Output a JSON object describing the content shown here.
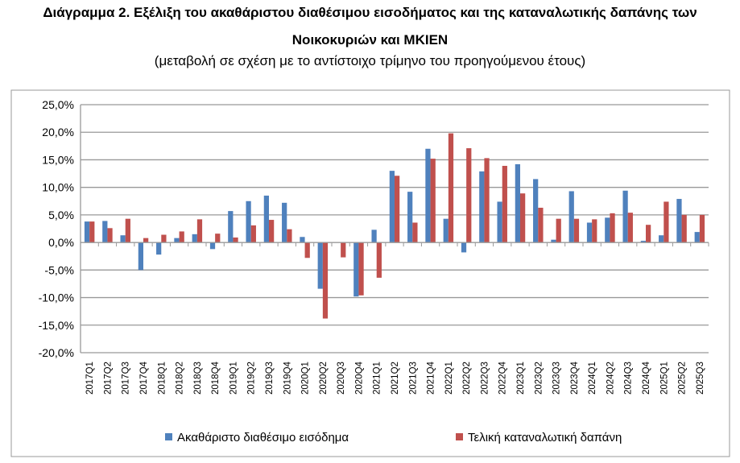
{
  "title_line1": "Διάγραμμα 2. Εξέλιξη του ακαθάριστου διαθέσιμου εισοδήματος και της καταναλωτικής δαπάνης των",
  "title_line2": "Νοικοκυριών και ΜΚΙΕΝ",
  "subtitle": "(μεταβολή σε σχέση με το αντίστοιχο τρίμηνο του προηγούμενου έτους)",
  "chart_data": {
    "type": "bar",
    "ylim": [
      -20,
      25
    ],
    "yticks": [
      -20,
      -15,
      -10,
      -5,
      0,
      5,
      10,
      15,
      20,
      25
    ],
    "ytick_labels": [
      "-20,0%",
      "-15,0%",
      "-10,0%",
      "-5,0%",
      "0,0%",
      "5,0%",
      "10,0%",
      "15,0%",
      "20,0%",
      "25,0%"
    ],
    "grid": true,
    "legend_position": "bottom",
    "categories": [
      "2017Q1",
      "2017Q2",
      "2017Q3",
      "2017Q4",
      "2018Q1",
      "2018Q2",
      "2018Q3",
      "2018Q4",
      "2019Q1",
      "2019Q2",
      "2019Q3",
      "2019Q4",
      "2020Q1",
      "2020Q2",
      "2020Q3",
      "2020Q4",
      "2021Q1",
      "2021Q2",
      "2021Q3",
      "2021Q4",
      "2022Q1",
      "2022Q2",
      "2022Q3",
      "2022Q4",
      "2023Q1",
      "2023Q2",
      "2023Q3",
      "2023Q4",
      "2024Q1",
      "2024Q2",
      "2024Q3",
      "2024Q4",
      "2025Q1",
      "2025Q2",
      "2025Q3"
    ],
    "series": [
      {
        "name": "Ακαθάριστο διαθέσιμο εισόδημα",
        "color": "#4F81BD",
        "values": [
          3.8,
          3.9,
          1.3,
          -5.0,
          -2.2,
          0.8,
          1.5,
          -1.2,
          5.7,
          7.5,
          8.5,
          7.2,
          1.0,
          -8.4,
          0.0,
          -9.8,
          2.3,
          13.0,
          9.2,
          17.0,
          4.3,
          -1.8,
          12.9,
          7.4,
          14.2,
          11.5,
          0.5,
          9.3,
          3.6,
          4.5,
          9.4,
          0.3,
          1.3,
          7.9,
          1.9
        ]
      },
      {
        "name": "Τελική καταναλωτική δαπάνη",
        "color": "#C0504D",
        "values": [
          3.8,
          2.6,
          4.3,
          0.8,
          1.4,
          2.0,
          4.2,
          1.6,
          0.9,
          3.1,
          4.1,
          2.4,
          -2.8,
          -13.8,
          -2.7,
          -9.6,
          -6.4,
          12.1,
          3.6,
          15.2,
          19.8,
          17.1,
          15.3,
          13.9,
          8.9,
          6.3,
          4.3,
          4.3,
          4.2,
          5.3,
          5.4,
          3.2,
          7.4,
          5.0,
          5.0
        ]
      }
    ]
  }
}
